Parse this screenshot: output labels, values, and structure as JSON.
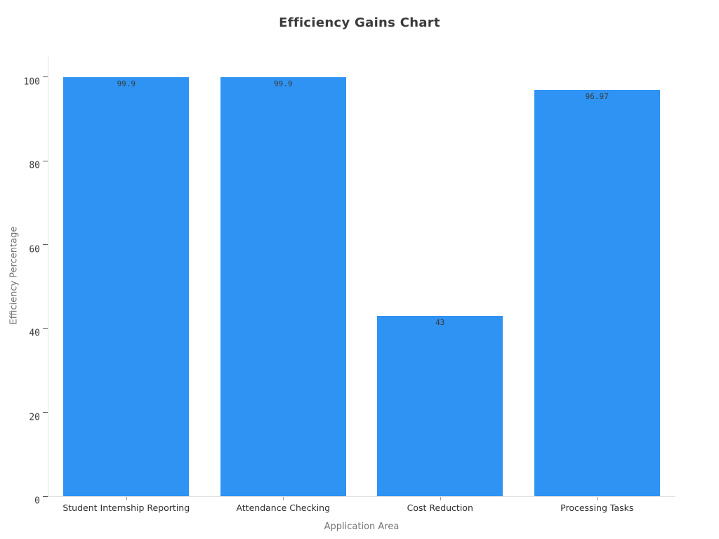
{
  "chart_data": {
    "type": "bar",
    "title": "Efficiency Gains Chart",
    "xlabel": "Application Area",
    "ylabel": "Efficiency Percentage",
    "categories": [
      "Student Internship Reporting",
      "Attendance Checking",
      "Cost Reduction",
      "Processing Tasks"
    ],
    "values": [
      99.9,
      99.9,
      43,
      96.97
    ],
    "bar_labels": [
      "99.9",
      "99.9",
      "43",
      "96.97"
    ],
    "yticks": [
      0,
      20,
      40,
      60,
      80,
      100
    ],
    "ylim": [
      0,
      105
    ],
    "grid": false,
    "legend": false,
    "colors": {
      "bar": "#2e93f2",
      "title_text": "#3b3b3b",
      "axis_title_text": "#757575",
      "tick_label_text": "#3c3c3c",
      "bar_value_text": "#3a3a3a",
      "axis_line": "#e2e2e2"
    }
  }
}
